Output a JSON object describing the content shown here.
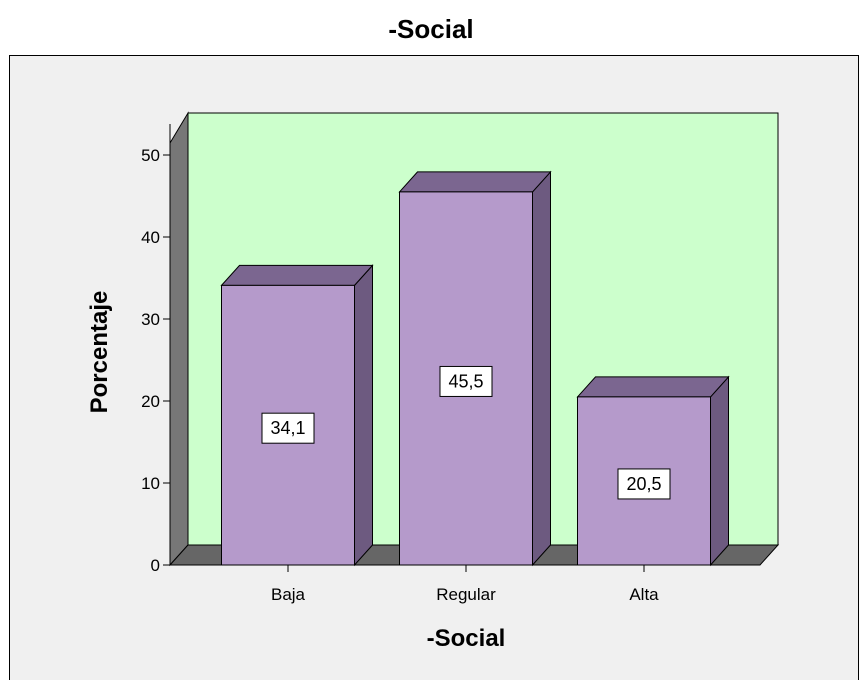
{
  "chart_data": {
    "type": "bar",
    "title": "-Social",
    "xlabel": "-Social",
    "ylabel": "Porcentaje",
    "categories": [
      "Baja",
      "Regular",
      "Alta"
    ],
    "values": [
      34.1,
      45.5,
      20.5
    ],
    "value_labels": [
      "34,1",
      "45,5",
      "20,5"
    ],
    "ylim": [
      0,
      55
    ],
    "yticks": [
      0,
      10,
      20,
      30,
      40,
      50
    ],
    "grid": false,
    "style": "3d",
    "colors": {
      "bar_front": "#b59acb",
      "bar_side": "#6d5a80",
      "bar_top": "#7b6690",
      "plot_back": "#ccffcc",
      "wall_side": "#777777",
      "floor": "#666666",
      "frame_bg": "#f0f0f0"
    }
  }
}
